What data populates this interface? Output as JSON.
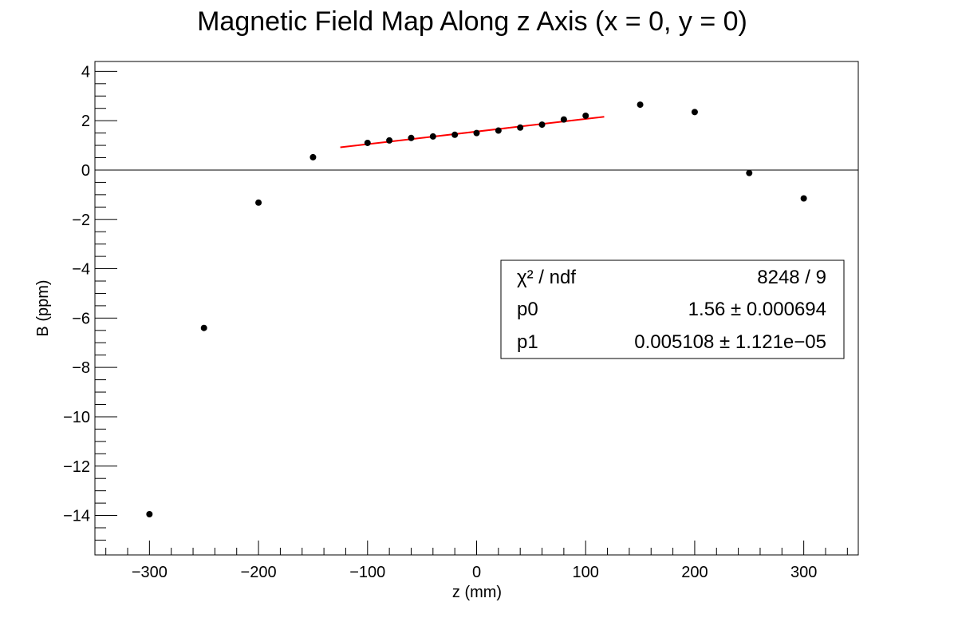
{
  "chart_data": {
    "type": "scatter",
    "title": "Magnetic Field Map Along z Axis (x = 0, y = 0)",
    "xlabel": "z (mm)",
    "ylabel": "B (ppm)",
    "xlim": [
      -350,
      350
    ],
    "ylim": [
      -15.6,
      4.4
    ],
    "xticks": [
      -300,
      -200,
      -100,
      0,
      100,
      200,
      300
    ],
    "yticks": [
      -14,
      -12,
      -10,
      -8,
      -6,
      -4,
      -2,
      0,
      2,
      4
    ],
    "xtick_labels": [
      "−300",
      "−200",
      "−100",
      "0",
      "100",
      "200",
      "300"
    ],
    "ytick_labels": [
      "−14",
      "−12",
      "−10",
      "−8",
      "−6",
      "−4",
      "−2",
      "0",
      "2",
      "4"
    ],
    "grid": false,
    "zero_line": true,
    "series": [
      {
        "marker_color": "#000000",
        "x": [
          -300,
          -250,
          -200,
          -150,
          -100,
          -80,
          -60,
          -40,
          -20,
          0,
          20,
          40,
          60,
          80,
          100,
          150,
          200,
          250,
          300
        ],
        "y": [
          -13.95,
          -6.4,
          -1.32,
          0.52,
          1.1,
          1.2,
          1.3,
          1.36,
          1.43,
          1.5,
          1.6,
          1.72,
          1.84,
          2.05,
          2.2,
          2.65,
          2.35,
          -0.12,
          -1.15
        ]
      }
    ],
    "fit": {
      "function": "p0 + p1*z",
      "color": "#ff0000",
      "x_range": [
        -125,
        117
      ],
      "p0": 1.56,
      "p1": 0.005108
    },
    "stats_box": {
      "placement": "right-middle",
      "rows": [
        {
          "label": "χ² / ndf",
          "value": "8248 / 9"
        },
        {
          "label": "p0",
          "value": "1.56 ± 0.000694"
        },
        {
          "label": "p1",
          "value": "0.005108 ± 1.121e−05"
        }
      ]
    }
  }
}
